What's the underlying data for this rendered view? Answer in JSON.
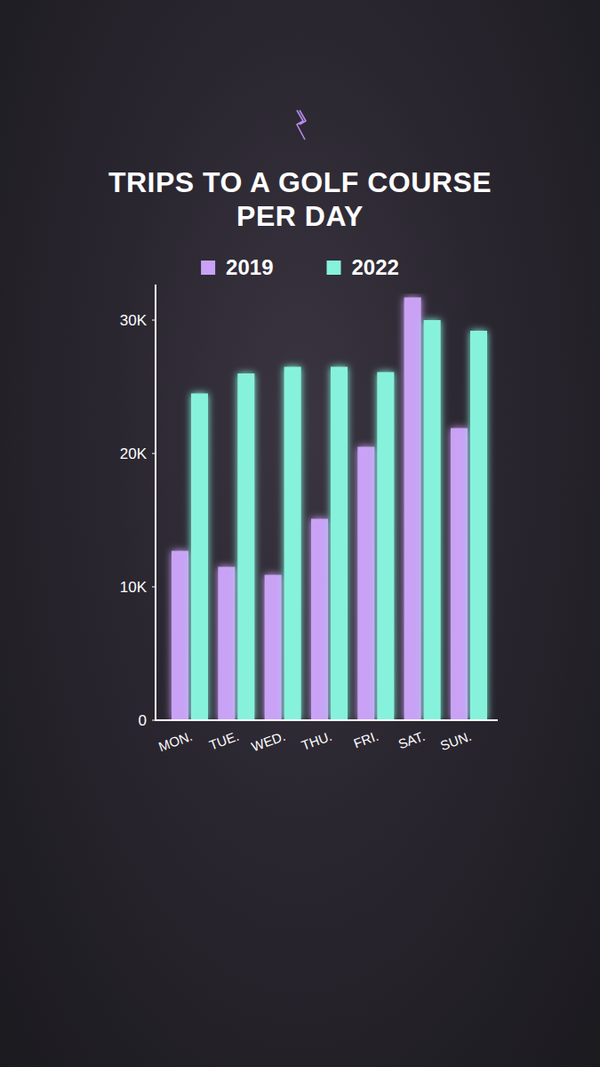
{
  "chart_data": {
    "type": "bar",
    "title": "TRIPS TO A GOLF COURSE PER DAY",
    "categories": [
      "MON.",
      "TUE.",
      "WED.",
      "THU.",
      "FRI.",
      "SAT.",
      "SUN."
    ],
    "series": [
      {
        "name": "2019",
        "color": "#c9a2f5",
        "values": [
          12700,
          11500,
          10900,
          15100,
          20500,
          31700,
          21900
        ]
      },
      {
        "name": "2022",
        "color": "#86f2dc",
        "values": [
          24500,
          26000,
          26500,
          26500,
          26100,
          30000,
          29200
        ]
      }
    ],
    "ylim": [
      0,
      32000
    ],
    "yticks": [
      0,
      {
        "value": 10000,
        "label": "10K"
      },
      {
        "value": 20000,
        "label": "20K"
      },
      {
        "value": 30000,
        "label": "30K"
      }
    ],
    "legend": "top"
  }
}
